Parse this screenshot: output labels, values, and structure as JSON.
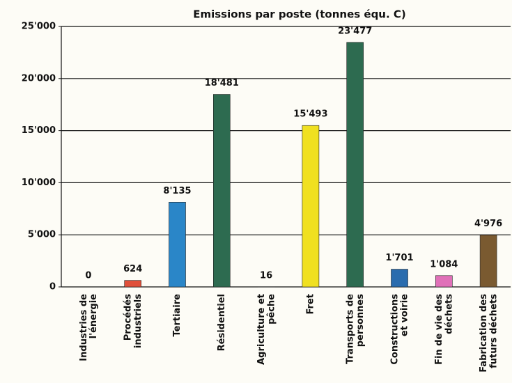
{
  "chart_data": {
    "type": "bar",
    "title": "Emissions par poste (tonnes équ. C)",
    "categories": [
      "Industries de\nl'énergie",
      "Procédés\nindustriels",
      "Tertiaire",
      "Résidentiel",
      "Agriculture et\npêche",
      "Fret",
      "Transports de\npersonnes",
      "Constructions\net voirie",
      "Fin de vie des\ndéchets",
      "Fabrication des\nfuturs déchets"
    ],
    "values": [
      0,
      624,
      8135,
      18481,
      16,
      15493,
      23477,
      1701,
      1084,
      4976
    ],
    "value_labels": [
      "0",
      "624",
      "8'135",
      "18'481",
      "16",
      "15'493",
      "23'477",
      "1'701",
      "1'084",
      "4'976"
    ],
    "colors": [
      "#2f6a56",
      "#e0503a",
      "#2a86c8",
      "#2d6b50",
      "#2f6a56",
      "#f0e020",
      "#2d6b50",
      "#2a6cae",
      "#e070b8",
      "#7a5a30"
    ],
    "ylim": [
      0,
      25000
    ],
    "yticks": [
      0,
      {
        "value": 5000,
        "label": "5'000"
      },
      {
        "value": 10000,
        "label": "10'000"
      },
      {
        "value": 15000,
        "label": "15'000"
      },
      {
        "value": 20000,
        "label": "20'000"
      },
      {
        "value": 25000,
        "label": "25'000"
      }
    ],
    "grid": true
  }
}
